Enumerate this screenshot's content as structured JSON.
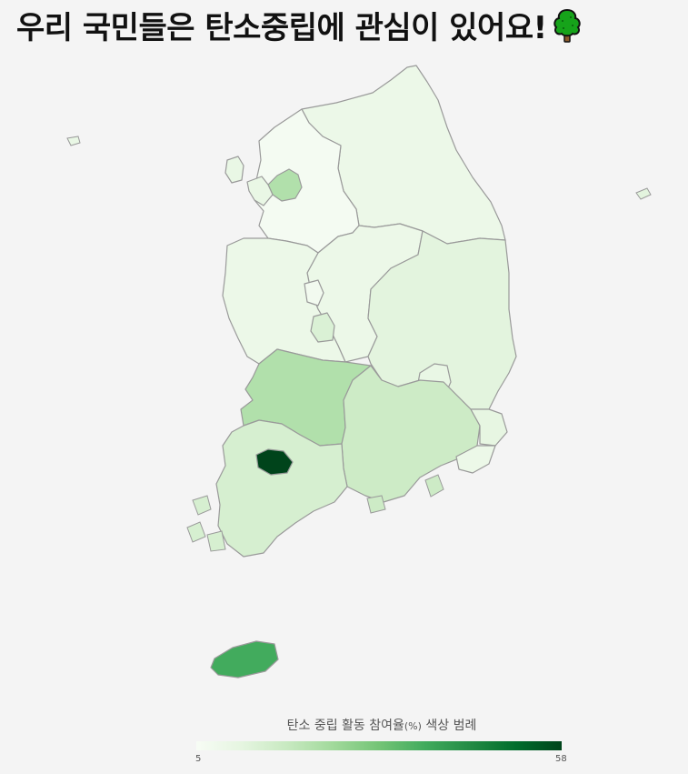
{
  "title": "우리 국민들은 탄소중립에 관심이 있어요!",
  "title_emoji_icon": "deciduous-tree-icon",
  "legend": {
    "title": "탄소 중립 활동 참여율",
    "unit": "(%)",
    "suffix": "색상 범례",
    "min_label": "5",
    "max_label": "58",
    "min": 5,
    "max": 58,
    "color_low": "#f7fcf5",
    "color_high": "#00441b"
  },
  "map_data": {
    "type": "choropleth",
    "metric": "탄소 중립 활동 참여율(%)",
    "regions": [
      {
        "id": "gangwon",
        "value": 9
      },
      {
        "id": "gyeonggi",
        "value": 6
      },
      {
        "id": "seoul",
        "value": 22
      },
      {
        "id": "incheon",
        "value": 10
      },
      {
        "id": "chungbuk",
        "value": 9
      },
      {
        "id": "chungnam",
        "value": 9
      },
      {
        "id": "sejong",
        "value": 7
      },
      {
        "id": "daejeon",
        "value": 14
      },
      {
        "id": "gyeongbuk",
        "value": 12
      },
      {
        "id": "daegu",
        "value": 10
      },
      {
        "id": "jeonbuk",
        "value": 22
      },
      {
        "id": "jeonnam",
        "value": 15
      },
      {
        "id": "gwangju",
        "value": 58
      },
      {
        "id": "gyeongnam",
        "value": 17
      },
      {
        "id": "ulsan",
        "value": 11
      },
      {
        "id": "busan",
        "value": 9
      },
      {
        "id": "jeju",
        "value": 38
      }
    ]
  }
}
